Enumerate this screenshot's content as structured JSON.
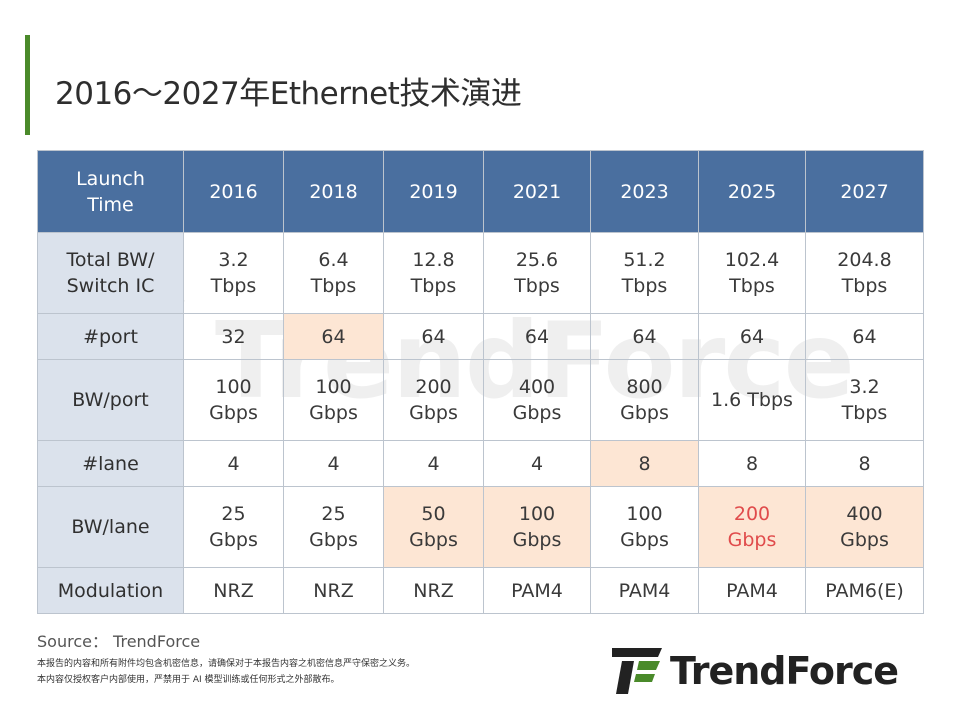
{
  "title": "2016～2027年Ethernet技术演进",
  "watermark": "TrendForce",
  "table": {
    "corner": "Launch\nTime",
    "years": [
      "2016",
      "2018",
      "2019",
      "2021",
      "2023",
      "2025",
      "2027"
    ],
    "rows": [
      {
        "label": "Total BW/\nSwitch IC",
        "cells": [
          "3.2\nTbps",
          "6.4\nTbps",
          "12.8\nTbps",
          "25.6\nTbps",
          "51.2\nTbps",
          "102.4\nTbps",
          "204.8\nTbps"
        ]
      },
      {
        "label": "#port",
        "cells": [
          "32",
          "64",
          "64",
          "64",
          "64",
          "64",
          "64"
        ]
      },
      {
        "label": "BW/port",
        "cells": [
          "100\nGbps",
          "100\nGbps",
          "200\nGbps",
          "400\nGbps",
          "800\nGbps",
          "1.6 Tbps",
          "3.2\nTbps"
        ]
      },
      {
        "label": "#lane",
        "cells": [
          "4",
          "4",
          "4",
          "4",
          "8",
          "8",
          "8"
        ]
      },
      {
        "label": "BW/lane",
        "cells": [
          "25\nGbps",
          "25\nGbps",
          "50\nGbps",
          "100\nGbps",
          "100\nGbps",
          "200\nGbps",
          "400\nGbps"
        ]
      },
      {
        "label": "Modulation",
        "cells": [
          "NRZ",
          "NRZ",
          "NRZ",
          "PAM4",
          "PAM4",
          "PAM4",
          "PAM6(E)"
        ]
      }
    ]
  },
  "source": "Source： TrendForce",
  "disclaimer": {
    "line1": "本报告的内容和所有附件均包含机密信息，请确保对于本报告内容之机密信息严守保密之义务。",
    "line2": "本内容仅授权客户内部使用，严禁用于 AI 模型训练或任何形式之外部散布。"
  },
  "logo": {
    "text": "TrendForce"
  },
  "colors": {
    "accent_bar": "#4a8a2a",
    "header_bg": "#4a6f9f",
    "rowhead_bg": "#dbe2ec",
    "highlight_bg": "#fde6d4",
    "highlight_text": "#e04b4b"
  }
}
